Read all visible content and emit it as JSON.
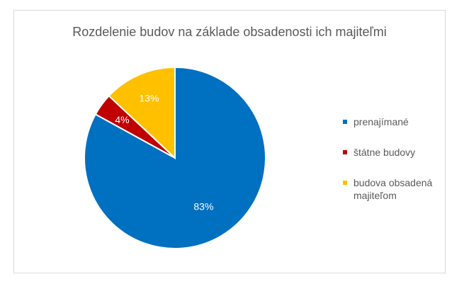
{
  "chart_data": {
    "type": "pie",
    "title": "Rozdelenie budov na základe obsadenosti ich majiteľmi",
    "slices": [
      {
        "label": "prenajímané",
        "value": 83,
        "display": "83%",
        "color": "#0070C0"
      },
      {
        "label": "štátne budovy",
        "value": 4,
        "display": "4%",
        "color": "#C00000"
      },
      {
        "label": "budova obsadená majiteľom",
        "value": 13,
        "display": "13%",
        "color": "#FFC000"
      }
    ],
    "legend_position": "right",
    "start_angle": "12 o'clock, clockwise"
  }
}
